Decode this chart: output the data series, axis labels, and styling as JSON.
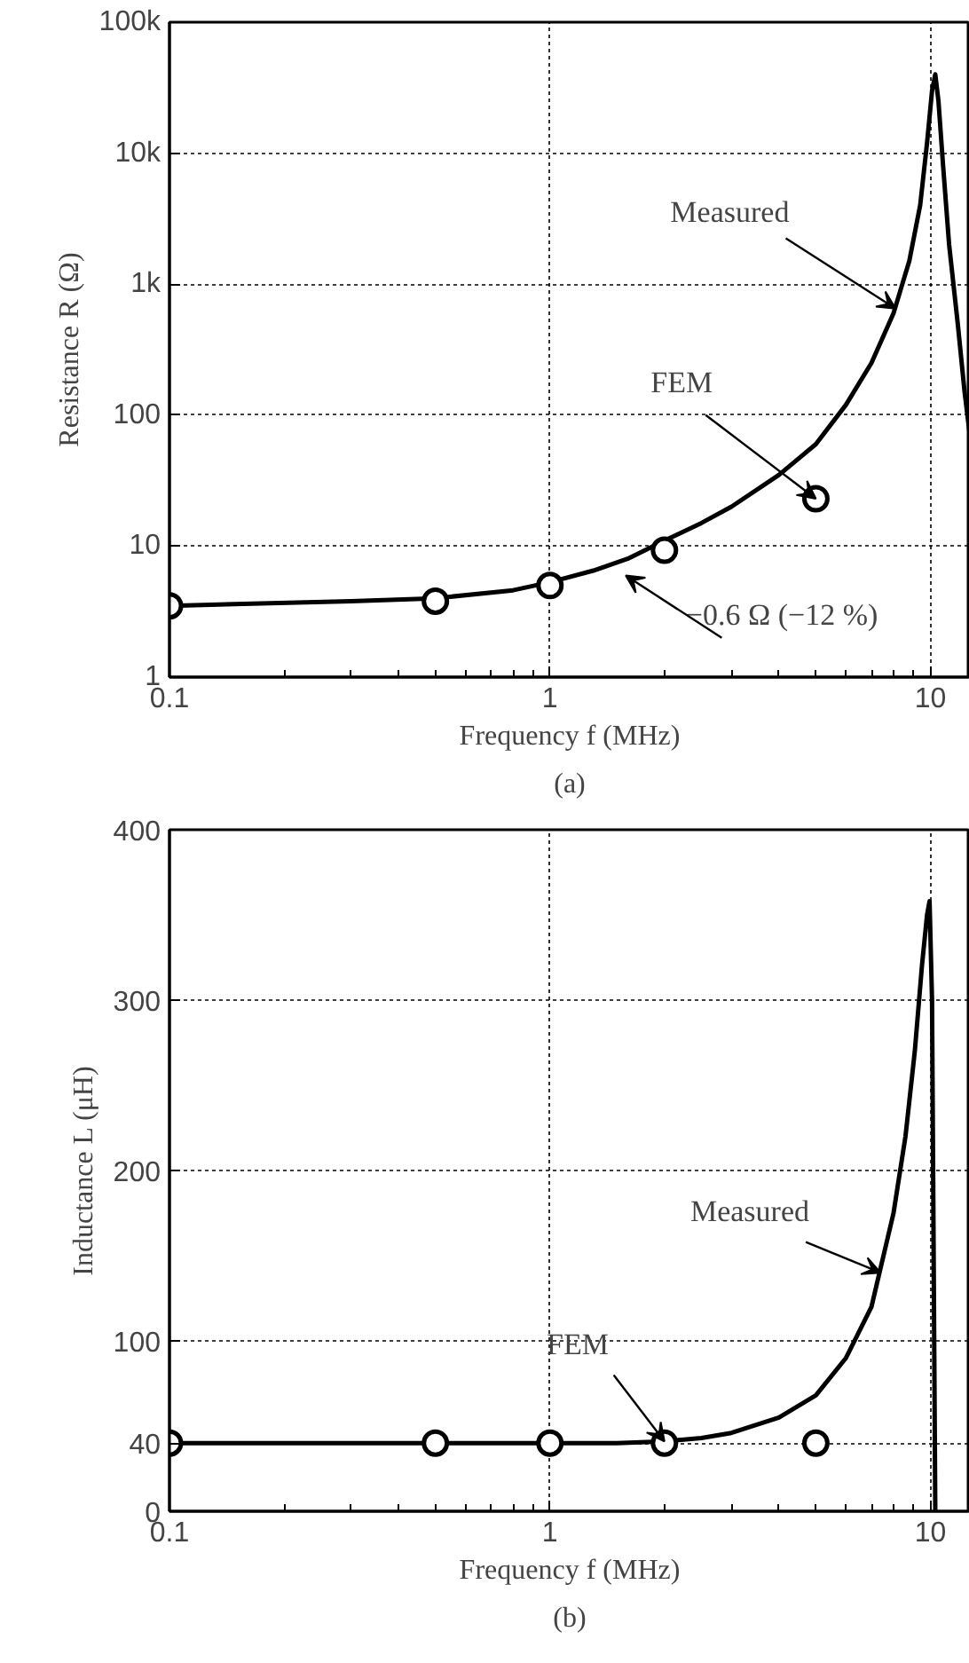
{
  "chart_data": [
    {
      "type": "line",
      "xlabel": "Frequency f (MHz)",
      "ylabel": "Resistance R (Ω)",
      "log": "xy",
      "grid": true,
      "xlim": [
        0.1,
        12.7
      ],
      "ylim": [
        1,
        100000
      ],
      "xticks": [
        0.1,
        1,
        10
      ],
      "yticks": [
        1,
        10,
        100,
        {
          "value": 1000,
          "label": "1k"
        },
        {
          "value": 10000,
          "label": "10k"
        },
        {
          "value": 100000,
          "label": "100k"
        }
      ],
      "series": [
        {
          "color": "#000000",
          "marker": "none",
          "x": [
            0.1,
            0.3,
            0.5,
            0.8,
            1,
            1.3,
            1.6,
            2,
            2.5,
            3,
            4,
            5,
            6,
            7,
            8,
            8.8,
            9.4,
            9.8,
            10.1,
            10.3,
            10.5,
            10.8,
            11.2,
            11.8,
            12.3,
            12.7
          ],
          "values": [
            3.5,
            3.8,
            4.0,
            4.6,
            5.3,
            6.5,
            8,
            11,
            15,
            20,
            35,
            60,
            120,
            250,
            600,
            1500,
            4000,
            12000,
            30000,
            40000,
            25000,
            8000,
            2000,
            500,
            150,
            70
          ]
        },
        {
          "type": "scatter",
          "color": "#000000",
          "marker": "circle",
          "x": [
            0.1,
            0.5,
            1,
            2,
            5
          ],
          "values": [
            3.5,
            3.8,
            5.0,
            9.3,
            23
          ]
        }
      ],
      "annotations": [
        {
          "text": "Measured",
          "x": 8.1,
          "y": 650
        },
        {
          "text": "FEM",
          "x": 5,
          "y": 23
        },
        "−0.6 Ω (−12 %)",
        "(a)"
      ]
    },
    {
      "type": "line",
      "xlabel": "Frequency f (MHz)",
      "ylabel": "Inductance L (μH)",
      "log": "x",
      "grid": true,
      "xlim": [
        0.1,
        12.7
      ],
      "ylim": [
        0,
        400
      ],
      "xticks": [
        0.1,
        1,
        10
      ],
      "yticks": [
        0,
        40,
        100,
        200,
        300,
        400
      ],
      "series": [
        {
          "color": "#000000",
          "marker": "none",
          "x": [
            0.1,
            0.5,
            1,
            1.5,
            2,
            2.5,
            3,
            4,
            5,
            6,
            7,
            8,
            8.6,
            9.1,
            9.5,
            9.8,
            9.95,
            10.1,
            10.2,
            10.3
          ],
          "values": [
            40,
            40,
            40,
            40,
            41,
            43,
            46,
            55,
            68,
            90,
            120,
            175,
            220,
            270,
            320,
            350,
            358,
            300,
            150,
            0
          ]
        },
        {
          "type": "scatter",
          "color": "#000000",
          "marker": "circle",
          "x": [
            0.1,
            0.5,
            1,
            2,
            5
          ],
          "values": [
            40,
            40,
            40,
            40,
            40
          ]
        }
      ],
      "annotations": [
        {
          "text": "Measured",
          "x": 7.4,
          "y": 140
        },
        {
          "text": "FEM",
          "x": 2,
          "y": 41
        },
        "(b)"
      ]
    }
  ]
}
